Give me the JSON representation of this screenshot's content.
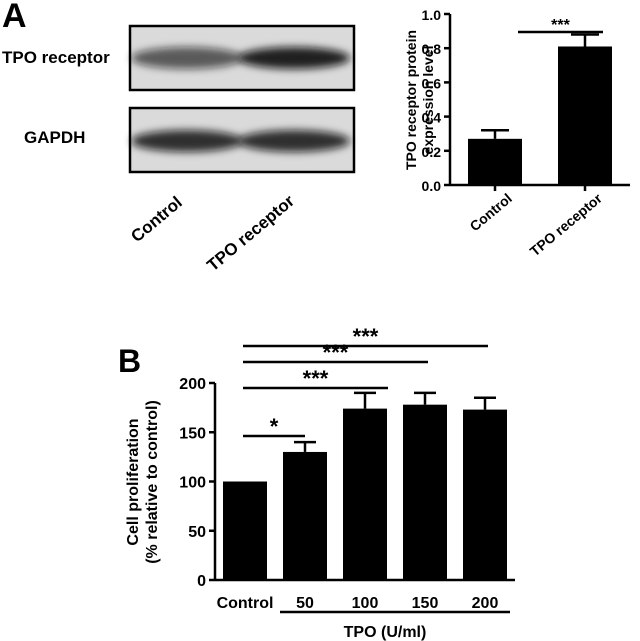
{
  "panel_a": {
    "letter": "A",
    "blot": {
      "rows": [
        "TPO receptor",
        "GAPDH"
      ],
      "lanes": [
        "Control",
        "TPO receptor"
      ],
      "band_intensity": [
        [
          0.55,
          0.95
        ],
        [
          0.85,
          0.85
        ]
      ]
    }
  },
  "panel_b": {
    "letter": "B"
  },
  "chart_data": [
    {
      "type": "bar",
      "panel": "A",
      "categories": [
        "Control",
        "TPO receptor"
      ],
      "values": [
        0.27,
        0.81
      ],
      "errors": [
        0.05,
        0.07
      ],
      "title": "",
      "xlabel": "",
      "ylabel": "TPO receptor protein expression level",
      "ylim": [
        0,
        1.0
      ],
      "yticks": [
        "0.0",
        "0.2",
        "0.4",
        "0.6",
        "0.8",
        "1.0"
      ],
      "grid": false,
      "bar_color": "#000000",
      "significance": [
        {
          "from": 0,
          "to": 1,
          "label": "***"
        }
      ]
    },
    {
      "type": "bar",
      "panel": "B",
      "categories": [
        "Control",
        "50",
        "100",
        "150",
        "200"
      ],
      "values": [
        100,
        130,
        174,
        178,
        173
      ],
      "errors": [
        0,
        10,
        16,
        12,
        12
      ],
      "title": "",
      "xlabel": "TPO (U/ml)",
      "ylabel": "Cell proliferation (% relative to control)",
      "ylim": [
        0,
        200
      ],
      "yticks": [
        "0",
        "50",
        "100",
        "150",
        "200"
      ],
      "grid": false,
      "bar_color": "#000000",
      "significance": [
        {
          "from": 0,
          "to": 1,
          "label": "*"
        },
        {
          "from": 0,
          "to": 2,
          "label": "***"
        },
        {
          "from": 0,
          "to": 3,
          "label": "***"
        },
        {
          "from": 0,
          "to": 4,
          "label": "***"
        }
      ]
    }
  ]
}
